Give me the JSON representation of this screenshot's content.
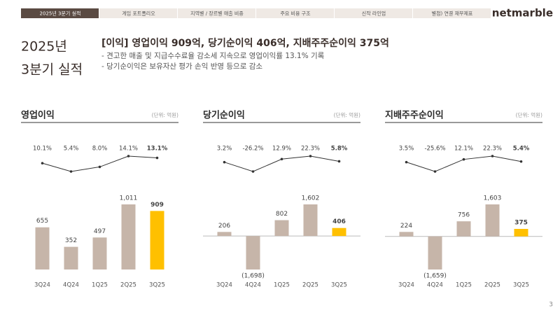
{
  "nav": {
    "tabs": [
      "2025년 3분기 실적",
      "게임 포트폴리오",
      "지역별 / 장르별 매출 비중",
      "주요 비용 구조",
      "신작 라인업",
      "별첨) 연결 재무제표"
    ],
    "logo": "netmarble"
  },
  "heading": {
    "year": "2025년",
    "period": "3분기 실적"
  },
  "headline": "[이익] 영업이익 909억,  당기순이익 406억, 지배주주순이익 375억",
  "bullets": [
    "- 견고한 매출 및 지급수수료율 감소세 지속으로 영업이익률 13.1% 기록",
    "- 당기순이익은 보유자산 평가 손익 반영 등으로 감소"
  ],
  "page_number": "3",
  "chart_data": [
    {
      "type": "bar",
      "title": "영업이익",
      "unit": "(단위: 억원)",
      "categories": [
        "3Q24",
        "4Q24",
        "1Q25",
        "2Q25",
        "3Q25"
      ],
      "values": [
        655,
        352,
        497,
        1011,
        909
      ],
      "value_labels": [
        "655",
        "352",
        "497",
        "1,011",
        "909"
      ],
      "colors": [
        "#c6b5a9",
        "#c6b5a9",
        "#c6b5a9",
        "#c6b5a9",
        "#ffc000"
      ],
      "label_colors": [
        "#444444",
        "#444444",
        "#444444",
        "#444444",
        "#c00000"
      ],
      "line": {
        "type": "line",
        "values": [
          10.1,
          5.4,
          8.0,
          14.1,
          13.1
        ],
        "value_labels": [
          "10.1%",
          "5.4%",
          "8.0%",
          "14.1%",
          "13.1%"
        ],
        "color": "#333333",
        "label_colors": [
          "#444444",
          "#444444",
          "#444444",
          "#444444",
          "#c00000"
        ]
      }
    },
    {
      "type": "bar",
      "title": "당기순이익",
      "unit": "(단위: 억원)",
      "categories": [
        "3Q24",
        "4Q24",
        "1Q25",
        "2Q25",
        "3Q25"
      ],
      "values": [
        206,
        -1698,
        802,
        1602,
        406
      ],
      "value_labels": [
        "206",
        "(1,698)",
        "802",
        "1,602",
        "406"
      ],
      "colors": [
        "#c6b5a9",
        "#c6b5a9",
        "#c6b5a9",
        "#c6b5a9",
        "#ffc000"
      ],
      "label_colors": [
        "#444444",
        "#444444",
        "#444444",
        "#444444",
        "#c00000"
      ],
      "line": {
        "type": "line",
        "values": [
          3.2,
          -26.2,
          12.9,
          22.3,
          5.8
        ],
        "value_labels": [
          "3.2%",
          "-26.2%",
          "12.9%",
          "22.3%",
          "5.8%"
        ],
        "color": "#333333",
        "label_colors": [
          "#444444",
          "#444444",
          "#444444",
          "#444444",
          "#c00000"
        ]
      }
    },
    {
      "type": "bar",
      "title": "지배주주순이익",
      "unit": "(단위: 억원)",
      "categories": [
        "3Q24",
        "4Q24",
        "1Q25",
        "2Q25",
        "3Q25"
      ],
      "values": [
        224,
        -1659,
        756,
        1603,
        375
      ],
      "value_labels": [
        "224",
        "(1,659)",
        "756",
        "1,603",
        "375"
      ],
      "colors": [
        "#c6b5a9",
        "#c6b5a9",
        "#c6b5a9",
        "#c6b5a9",
        "#ffc000"
      ],
      "label_colors": [
        "#444444",
        "#444444",
        "#444444",
        "#444444",
        "#c00000"
      ],
      "line": {
        "type": "line",
        "values": [
          3.5,
          -25.6,
          12.1,
          22.3,
          5.4
        ],
        "value_labels": [
          "3.5%",
          "-25.6%",
          "12.1%",
          "22.3%",
          "5.4%"
        ],
        "color": "#333333",
        "label_colors": [
          "#444444",
          "#444444",
          "#444444",
          "#444444",
          "#c00000"
        ]
      }
    }
  ]
}
